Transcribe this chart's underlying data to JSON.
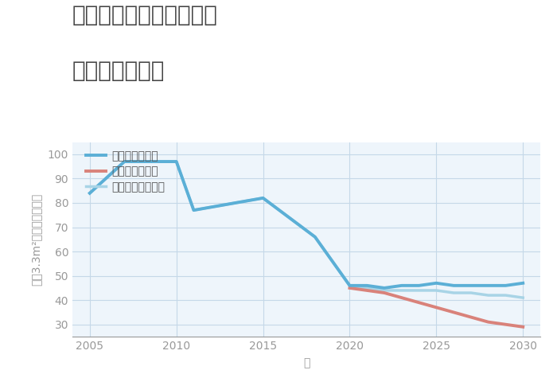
{
  "title_line1": "神奈川県南足柄市福泉の",
  "title_line2": "土地の価格推移",
  "xlabel": "年",
  "ylabel_parts": [
    "坪（3.3m²）単価（万円）"
  ],
  "ylim": [
    25,
    105
  ],
  "yticks": [
    30,
    40,
    50,
    60,
    70,
    80,
    90,
    100
  ],
  "xlim": [
    2004,
    2031
  ],
  "xticks": [
    2005,
    2010,
    2015,
    2020,
    2025,
    2030
  ],
  "good_scenario": {
    "label": "グッドシナリオ",
    "color": "#5bafd6",
    "linewidth": 2.8,
    "x": [
      2005,
      2007,
      2008,
      2010,
      2011,
      2015,
      2018,
      2020,
      2021,
      2022,
      2023,
      2024,
      2025,
      2026,
      2027,
      2028,
      2029,
      2030
    ],
    "y": [
      84,
      97,
      97,
      97,
      77,
      82,
      66,
      46,
      46,
      45,
      46,
      46,
      47,
      46,
      46,
      46,
      46,
      47
    ]
  },
  "bad_scenario": {
    "label": "バッドシナリオ",
    "color": "#d9827a",
    "linewidth": 2.8,
    "x": [
      2020,
      2021,
      2022,
      2023,
      2024,
      2025,
      2026,
      2027,
      2028,
      2029,
      2030
    ],
    "y": [
      45,
      44,
      43,
      41,
      39,
      37,
      35,
      33,
      31,
      30,
      29
    ]
  },
  "normal_scenario": {
    "label": "ノーマルシナリオ",
    "color": "#a8d4e6",
    "linewidth": 2.5,
    "x": [
      2005,
      2007,
      2008,
      2010,
      2011,
      2015,
      2018,
      2020,
      2021,
      2022,
      2023,
      2024,
      2025,
      2026,
      2027,
      2028,
      2029,
      2030
    ],
    "y": [
      84,
      97,
      97,
      97,
      77,
      82,
      66,
      46,
      45,
      44,
      44,
      44,
      44,
      43,
      43,
      42,
      42,
      41
    ]
  },
  "bg_color": "#eef5fb",
  "grid_color": "#c5d8e8",
  "title_color": "#444444",
  "axis_color": "#999999",
  "legend_label_color": "#555555",
  "title_fontsize": 20,
  "axis_label_fontsize": 10,
  "tick_fontsize": 10,
  "legend_fontsize": 10
}
